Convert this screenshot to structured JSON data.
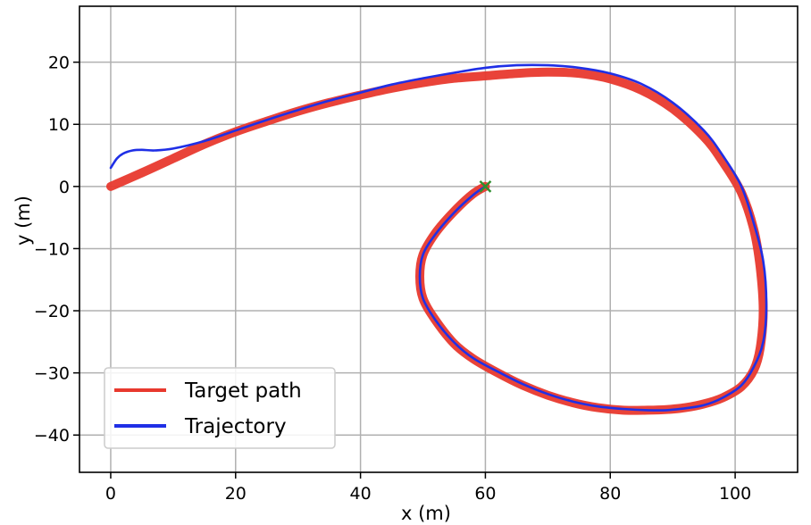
{
  "chart_data": {
    "type": "line",
    "title": "",
    "xlabel": "x (m)",
    "ylabel": "y (m)",
    "xlim": [
      -5,
      110
    ],
    "ylim": [
      -46,
      29
    ],
    "xticks": [
      0,
      20,
      40,
      60,
      80,
      100
    ],
    "yticks": [
      20,
      10,
      0,
      -10,
      -20,
      -30,
      -40
    ],
    "xtick_labels": [
      "0",
      "20",
      "40",
      "60",
      "80",
      "100"
    ],
    "ytick_labels": [
      "20",
      "10",
      "0",
      "−10",
      "−20",
      "−30",
      "−40"
    ],
    "grid": true,
    "legend_position": "lower-left",
    "series": [
      {
        "name": "Target path",
        "color": "#e8392e",
        "x": [
          0,
          5,
          10,
          15,
          20,
          25,
          30,
          35,
          40,
          45,
          50,
          55,
          60,
          65,
          70,
          75,
          80,
          85,
          90,
          95,
          98,
          101,
          103,
          104,
          104.5,
          104,
          103,
          101,
          98,
          95,
          92,
          89,
          86,
          82,
          78,
          74,
          70,
          66,
          62,
          58,
          55,
          52,
          50,
          49.5,
          50,
          52,
          55,
          58,
          60
        ],
        "y": [
          0,
          2.2,
          4.5,
          6.8,
          8.8,
          10.5,
          12.1,
          13.5,
          14.7,
          15.8,
          16.7,
          17.4,
          17.8,
          18.2,
          18.4,
          18.2,
          17.3,
          15.5,
          12.5,
          8,
          4,
          -1,
          -7,
          -13,
          -20,
          -26,
          -29.5,
          -32.2,
          -34,
          -35,
          -35.6,
          -35.9,
          -36,
          -36,
          -35.6,
          -34.8,
          -33.6,
          -32,
          -30,
          -27.7,
          -25.3,
          -21.5,
          -18,
          -14.5,
          -11,
          -7.5,
          -4,
          -1.2,
          0
        ]
      },
      {
        "name": "Trajectory",
        "color": "#1f2fe6",
        "x": [
          0,
          1,
          2,
          3.5,
          5,
          7,
          10,
          15,
          20,
          25,
          30,
          35,
          40,
          45,
          50,
          55,
          60,
          65,
          70,
          75,
          80,
          85,
          90,
          95,
          98,
          101,
          103,
          104.5,
          105,
          104.5,
          103,
          101,
          98,
          95,
          92,
          89,
          86,
          82,
          78,
          74,
          70,
          66,
          62,
          58,
          55,
          52,
          50,
          49.5,
          50,
          52,
          55,
          58,
          60
        ],
        "y": [
          3,
          4.5,
          5.3,
          5.8,
          5.9,
          5.8,
          6.1,
          7.3,
          9,
          10.7,
          12.3,
          13.8,
          15.1,
          16.4,
          17.4,
          18.3,
          19.1,
          19.5,
          19.5,
          19.1,
          18.2,
          16.5,
          13.5,
          9,
          5,
          0,
          -6,
          -12,
          -19,
          -25,
          -29,
          -32,
          -34,
          -35.2,
          -35.7,
          -36,
          -36,
          -35.8,
          -35.4,
          -34.6,
          -33.4,
          -31.8,
          -29.8,
          -27.6,
          -25.1,
          -21.5,
          -18,
          -14.5,
          -11,
          -7.7,
          -4.2,
          -1.4,
          0
        ]
      }
    ],
    "markers": [
      {
        "type": "x",
        "color": "#2f8f2f",
        "x": 60,
        "y": 0
      }
    ]
  }
}
